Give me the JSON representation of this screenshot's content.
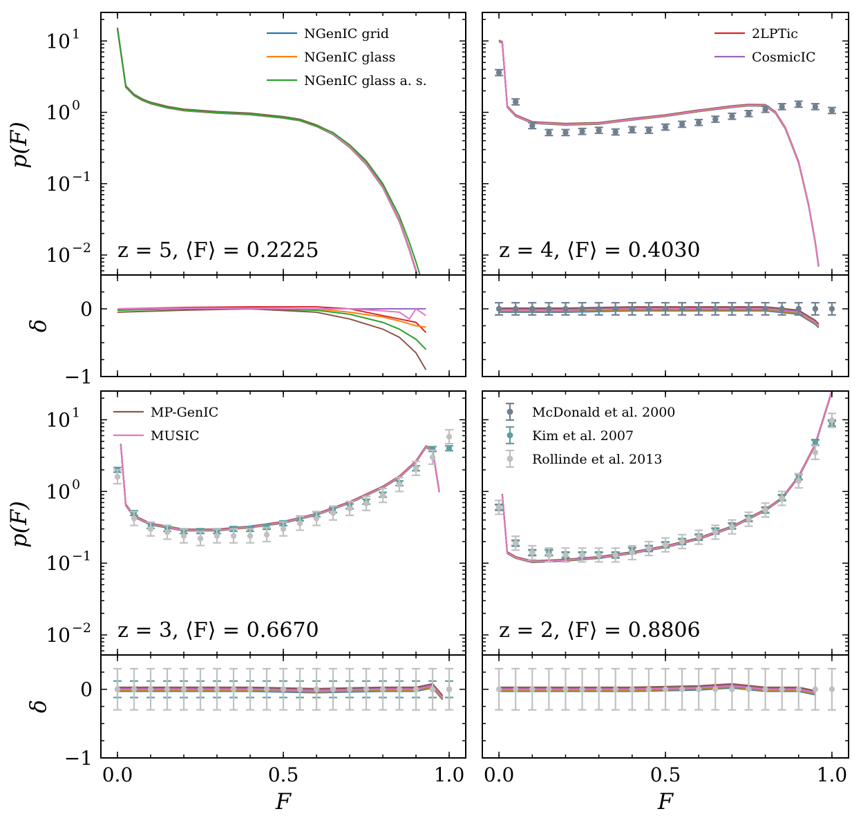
{
  "colors": {
    "NGenIC grid": "#1f77b4",
    "NGenIC glass": "#ff7f0e",
    "NGenIC glass a. s.": "#2ca02c",
    "2LPTic": "#d62728",
    "CosmicIC": "#9467bd",
    "MP-GenIC": "#8c564b",
    "MUSIC": "#e377c2",
    "McDonald et al. 2000": "#708090",
    "Kim et al. 2007": "#5f9ea0",
    "Rollinde et al. 2013": "#c0c0c0"
  },
  "axis_labels": {
    "y_top": "p(F)",
    "y_bottom": "δ",
    "x": "F"
  },
  "tick_labels": {
    "x": [
      "0.0",
      "0.5",
      "1.0"
    ],
    "y_log": [
      "10",
      "1",
      "10",
      "0",
      "10",
      "−1",
      "10",
      "−2"
    ],
    "y_delta": [
      "0",
      "−1"
    ]
  },
  "legends": {
    "tl": [
      "NGenIC grid",
      "NGenIC glass",
      "NGenIC glass a. s."
    ],
    "tr": [
      "2LPTic",
      "CosmicIC"
    ],
    "bl": [
      "MP-GenIC",
      "MUSIC"
    ],
    "br": [
      "McDonald et al. 2000",
      "Kim et al. 2007",
      "Rollinde et al. 2013"
    ]
  },
  "legend_display": {
    "tl": [
      "NGenIC grid",
      "NGenIC glass",
      "NGenIC glass a. s."
    ],
    "tr": [
      "2LPTic",
      "CosmicIC"
    ],
    "bl": [
      "MP-GenIC",
      "MUSIC"
    ],
    "br": [
      "McDonald et al. 2000",
      "Kim et al. 2007",
      "Rollinde et al. 2013"
    ]
  },
  "annotations": {
    "z5": "z = 5, ⟨F⟩ = 0.2225",
    "z4": "z = 4, ⟨F⟩ = 0.4030",
    "z3": "z = 3, ⟨F⟩ = 0.6670",
    "z2": "z = 2, ⟨F⟩ = 0.8806"
  },
  "chart_data": [
    {
      "type": "line",
      "panel": "z=5 p(F)",
      "x_range": [
        -0.05,
        1.05
      ],
      "y_scale": "log",
      "ylim": [
        0.005,
        25
      ],
      "series": [
        {
          "name": "MUSIC",
          "x": [
            0.0,
            0.025,
            0.05,
            0.075,
            0.1,
            0.15,
            0.2,
            0.3,
            0.4,
            0.5,
            0.55,
            0.6,
            0.65,
            0.7,
            0.75,
            0.8,
            0.85,
            0.88,
            0.9,
            0.91
          ],
          "y": [
            15,
            2.3,
            1.75,
            1.5,
            1.35,
            1.18,
            1.08,
            1.0,
            0.95,
            0.85,
            0.78,
            0.65,
            0.5,
            0.33,
            0.19,
            0.09,
            0.03,
            0.012,
            0.006,
            0.004
          ]
        },
        {
          "name": "NGenIC glass a. s.",
          "x": [
            0.0,
            0.025,
            0.05,
            0.075,
            0.1,
            0.15,
            0.2,
            0.3,
            0.4,
            0.5,
            0.55,
            0.6,
            0.65,
            0.7,
            0.75,
            0.8,
            0.85,
            0.88,
            0.9,
            0.92
          ],
          "y": [
            15,
            2.3,
            1.75,
            1.5,
            1.35,
            1.18,
            1.08,
            1.0,
            0.95,
            0.85,
            0.78,
            0.65,
            0.52,
            0.35,
            0.21,
            0.1,
            0.035,
            0.015,
            0.008,
            0.004
          ]
        }
      ]
    },
    {
      "type": "line",
      "panel": "z=5 delta",
      "ylim": [
        -1,
        0.5
      ],
      "series": [
        {
          "name": "2LPTic",
          "x": [
            0.0,
            0.2,
            0.4,
            0.6,
            0.7,
            0.8,
            0.85,
            0.9,
            0.93
          ],
          "y": [
            0.0,
            0.02,
            0.03,
            0.03,
            0.0,
            -0.1,
            -0.15,
            -0.2,
            -0.35
          ]
        },
        {
          "name": "NGenIC glass",
          "x": [
            0.0,
            0.2,
            0.4,
            0.6,
            0.7,
            0.8,
            0.85,
            0.9,
            0.93
          ],
          "y": [
            0.0,
            0.0,
            0.0,
            0.0,
            -0.05,
            -0.12,
            -0.18,
            -0.25,
            -0.27
          ]
        },
        {
          "name": "NGenIC glass a. s.",
          "x": [
            0.0,
            0.2,
            0.4,
            0.6,
            0.7,
            0.8,
            0.85,
            0.9,
            0.93
          ],
          "y": [
            -0.02,
            0.0,
            0.0,
            -0.02,
            -0.08,
            -0.2,
            -0.3,
            -0.45,
            -0.6
          ]
        },
        {
          "name": "MP-GenIC",
          "x": [
            0.0,
            0.2,
            0.4,
            0.6,
            0.7,
            0.8,
            0.85,
            0.9,
            0.93
          ],
          "y": [
            -0.05,
            -0.02,
            0.0,
            -0.05,
            -0.15,
            -0.3,
            -0.42,
            -0.65,
            -0.9
          ]
        },
        {
          "name": "CosmicIC",
          "x": [
            0.0,
            0.2,
            0.4,
            0.6,
            0.7,
            0.8,
            0.85,
            0.9,
            0.93
          ],
          "y": [
            0.0,
            0.0,
            0.0,
            0.0,
            0.0,
            0.0,
            0.0,
            0.0,
            0.0
          ]
        },
        {
          "name": "MUSIC",
          "x": [
            0.0,
            0.2,
            0.4,
            0.6,
            0.7,
            0.8,
            0.85,
            0.88,
            0.9,
            0.93
          ],
          "y": [
            0.0,
            0.01,
            0.01,
            0.0,
            0.0,
            -0.03,
            -0.05,
            -0.15,
            0.0,
            -0.1
          ]
        }
      ]
    },
    {
      "type": "line+errorbar",
      "panel": "z=4 p(F)",
      "ylim": [
        0.005,
        25
      ],
      "series": [
        {
          "name": "MUSIC",
          "x": [
            0.0,
            0.01,
            0.025,
            0.05,
            0.1,
            0.2,
            0.3,
            0.4,
            0.5,
            0.6,
            0.7,
            0.75,
            0.8,
            0.83,
            0.86,
            0.9,
            0.93,
            0.95,
            0.96
          ],
          "y": [
            10,
            9.5,
            1.2,
            0.9,
            0.72,
            0.68,
            0.7,
            0.8,
            0.9,
            1.05,
            1.2,
            1.26,
            1.25,
            1.0,
            0.6,
            0.2,
            0.05,
            0.015,
            0.007
          ]
        },
        {
          "name": "McDonald et al. 2000",
          "x": [
            0.0,
            0.05,
            0.1,
            0.15,
            0.2,
            0.25,
            0.3,
            0.35,
            0.4,
            0.45,
            0.5,
            0.55,
            0.6,
            0.65,
            0.7,
            0.75,
            0.8,
            0.85,
            0.9,
            0.95,
            1.0
          ],
          "y": [
            3.6,
            1.4,
            0.65,
            0.52,
            0.52,
            0.54,
            0.56,
            0.53,
            0.57,
            0.56,
            0.62,
            0.68,
            0.72,
            0.8,
            0.88,
            0.96,
            1.1,
            1.2,
            1.3,
            1.2,
            1.06
          ]
        }
      ]
    },
    {
      "type": "line+errorbar",
      "panel": "z=4 delta",
      "ylim": [
        -1,
        0.5
      ],
      "series": [
        {
          "name": "MUSIC",
          "x": [
            0.0,
            0.2,
            0.4,
            0.6,
            0.8,
            0.9,
            0.95,
            0.96
          ],
          "y": [
            -0.02,
            -0.02,
            0.0,
            0.0,
            0.0,
            -0.05,
            -0.2,
            -0.25
          ]
        },
        {
          "name": "McDonald et al. 2000",
          "x": [
            0.0,
            0.05,
            0.1,
            0.15,
            0.2,
            0.25,
            0.3,
            0.35,
            0.4,
            0.45,
            0.5,
            0.55,
            0.6,
            0.65,
            0.7,
            0.75,
            0.8,
            0.85,
            0.9,
            0.95,
            1.0
          ],
          "y": [
            0,
            0,
            0,
            0,
            0,
            0,
            0,
            0,
            0,
            0,
            0,
            0,
            0,
            0,
            0,
            0,
            0,
            0,
            0,
            0,
            0
          ]
        }
      ]
    },
    {
      "type": "line+errorbar",
      "panel": "z=3 p(F)",
      "ylim": [
        0.005,
        25
      ],
      "series": [
        {
          "name": "MUSIC",
          "x": [
            0.01,
            0.025,
            0.05,
            0.1,
            0.2,
            0.3,
            0.4,
            0.5,
            0.6,
            0.7,
            0.8,
            0.85,
            0.9,
            0.93,
            0.95,
            0.97
          ],
          "y": [
            4.5,
            0.65,
            0.45,
            0.35,
            0.29,
            0.29,
            0.32,
            0.37,
            0.48,
            0.7,
            1.15,
            1.6,
            2.6,
            4.2,
            3.8,
            1.0
          ]
        },
        {
          "name": "Kim et al. 2007",
          "x": [
            0.0,
            0.05,
            0.1,
            0.15,
            0.2,
            0.25,
            0.3,
            0.35,
            0.4,
            0.45,
            0.5,
            0.55,
            0.6,
            0.65,
            0.7,
            0.75,
            0.8,
            0.85,
            0.9,
            0.95,
            1.0
          ],
          "y": [
            2.0,
            0.5,
            0.33,
            0.3,
            0.28,
            0.28,
            0.28,
            0.3,
            0.3,
            0.32,
            0.36,
            0.42,
            0.48,
            0.55,
            0.62,
            0.72,
            0.9,
            1.3,
            2.1,
            3.9,
            4.0
          ]
        },
        {
          "name": "Rollinde et al. 2013",
          "x": [
            0.0,
            0.05,
            0.1,
            0.15,
            0.2,
            0.25,
            0.3,
            0.35,
            0.4,
            0.45,
            0.5,
            0.55,
            0.6,
            0.65,
            0.7,
            0.75,
            0.8,
            0.85,
            0.9,
            0.95,
            1.0
          ],
          "y": [
            1.6,
            0.42,
            0.3,
            0.27,
            0.24,
            0.22,
            0.24,
            0.24,
            0.24,
            0.25,
            0.3,
            0.36,
            0.42,
            0.5,
            0.58,
            0.68,
            0.88,
            1.25,
            2.1,
            3.0,
            5.8
          ]
        }
      ]
    },
    {
      "type": "line+errorbar",
      "panel": "z=3 delta",
      "ylim": [
        -1,
        0.5
      ],
      "series": [
        {
          "name": "MUSIC",
          "x": [
            0.0,
            0.2,
            0.4,
            0.6,
            0.8,
            0.9,
            0.95,
            0.98
          ],
          "y": [
            0.0,
            0.0,
            0.0,
            -0.02,
            0.0,
            0.0,
            0.05,
            -0.12
          ]
        },
        {
          "name": "Kim et al. 2007",
          "x": [
            0.0,
            0.05,
            0.1,
            0.15,
            0.2,
            0.25,
            0.3,
            0.35,
            0.4,
            0.45,
            0.5,
            0.55,
            0.6,
            0.65,
            0.7,
            0.75,
            0.8,
            0.85,
            0.9,
            0.95,
            1.0
          ],
          "y": [
            0,
            0,
            0,
            0,
            0,
            0,
            0,
            0,
            0,
            0,
            0,
            0,
            0,
            0,
            0,
            0,
            0,
            0,
            0,
            0,
            0
          ]
        },
        {
          "name": "Rollinde et al. 2013",
          "x": [
            0.0,
            0.05,
            0.1,
            0.15,
            0.2,
            0.25,
            0.3,
            0.35,
            0.4,
            0.45,
            0.5,
            0.55,
            0.6,
            0.65,
            0.7,
            0.75,
            0.8,
            0.85,
            0.9,
            0.95,
            1.0
          ],
          "y": [
            0,
            0,
            0,
            0,
            0,
            0,
            0,
            0,
            0,
            0,
            0,
            0,
            0,
            0,
            0,
            0,
            0,
            0,
            0,
            0,
            0
          ]
        }
      ]
    },
    {
      "type": "line+errorbar",
      "panel": "z=2 p(F)",
      "ylim": [
        0.005,
        25
      ],
      "series": [
        {
          "name": "MUSIC",
          "x": [
            0.01,
            0.025,
            0.05,
            0.1,
            0.2,
            0.3,
            0.4,
            0.5,
            0.6,
            0.7,
            0.8,
            0.85,
            0.9,
            0.95,
            1.0
          ],
          "y": [
            0.9,
            0.14,
            0.12,
            0.105,
            0.11,
            0.12,
            0.14,
            0.17,
            0.22,
            0.32,
            0.55,
            0.8,
            1.6,
            4.5,
            25
          ]
        },
        {
          "name": "McDonald et al. 2000",
          "x": [
            0.0,
            0.05,
            0.1,
            0.15,
            0.2,
            0.25,
            0.3,
            0.35,
            0.4,
            0.45,
            0.5,
            0.55,
            0.6,
            0.65,
            0.7,
            0.75,
            0.8,
            0.85,
            0.9,
            0.95,
            1.0
          ],
          "y": [
            0.6,
            0.19,
            0.14,
            0.14,
            0.13,
            0.13,
            0.13,
            0.13,
            0.15,
            0.16,
            0.18,
            0.2,
            0.23,
            0.28,
            0.33,
            0.42,
            0.55,
            0.82,
            1.6,
            4.8,
            9.0
          ]
        },
        {
          "name": "Kim et al. 2007",
          "x": [
            0.0,
            0.05,
            0.1,
            0.15,
            0.2,
            0.25,
            0.3,
            0.35,
            0.4,
            0.45,
            0.5,
            0.55,
            0.6,
            0.65,
            0.7,
            0.75,
            0.8,
            0.85,
            0.9,
            0.95,
            1.0
          ],
          "y": [
            0.6,
            0.19,
            0.14,
            0.14,
            0.13,
            0.13,
            0.13,
            0.13,
            0.15,
            0.16,
            0.18,
            0.2,
            0.23,
            0.28,
            0.33,
            0.42,
            0.55,
            0.82,
            1.6,
            4.8,
            8.8
          ]
        },
        {
          "name": "Rollinde et al. 2013",
          "x": [
            0.0,
            0.05,
            0.1,
            0.15,
            0.2,
            0.25,
            0.3,
            0.35,
            0.4,
            0.45,
            0.5,
            0.55,
            0.6,
            0.65,
            0.7,
            0.75,
            0.8,
            0.85,
            0.9,
            0.95,
            1.0
          ],
          "y": [
            0.6,
            0.19,
            0.14,
            0.13,
            0.13,
            0.13,
            0.13,
            0.13,
            0.14,
            0.16,
            0.18,
            0.2,
            0.23,
            0.27,
            0.32,
            0.41,
            0.55,
            0.8,
            1.4,
            3.5,
            9.8
          ]
        }
      ]
    },
    {
      "type": "line+errorbar",
      "panel": "z=2 delta",
      "ylim": [
        -1,
        0.5
      ],
      "series": [
        {
          "name": "MUSIC",
          "x": [
            0.0,
            0.2,
            0.4,
            0.6,
            0.7,
            0.8,
            0.9,
            0.95
          ],
          "y": [
            0.0,
            0.0,
            0.0,
            0.02,
            0.05,
            0.0,
            0.0,
            -0.05
          ]
        },
        {
          "name": "Rollinde et al. 2013",
          "x": [
            0.0,
            0.05,
            0.1,
            0.15,
            0.2,
            0.25,
            0.3,
            0.35,
            0.4,
            0.45,
            0.5,
            0.55,
            0.6,
            0.65,
            0.7,
            0.75,
            0.8,
            0.85,
            0.9,
            0.95,
            1.0
          ],
          "y": [
            0,
            0,
            0,
            0,
            0,
            0,
            0,
            0,
            0,
            0,
            0,
            0,
            0,
            0,
            0,
            0,
            0,
            0,
            0,
            0,
            0
          ]
        }
      ]
    }
  ]
}
